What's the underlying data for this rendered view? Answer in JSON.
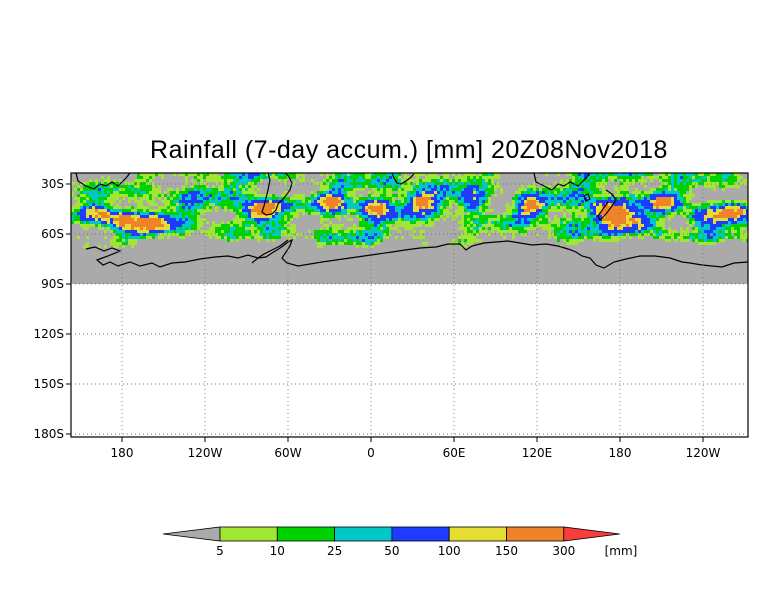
{
  "title": "Rainfall (7-day accum.) [mm] 20Z08Nov2018",
  "map": {
    "projection": "cylindrical",
    "lat_labels": [
      "30S",
      "60S",
      "90S",
      "120S",
      "150S",
      "180S"
    ],
    "lon_labels": [
      "180",
      "120W",
      "60W",
      "0",
      "60E",
      "120E",
      "180",
      "120W"
    ],
    "grid": "dotted",
    "masked_region_color": "#aaaaaa",
    "data_band": "30S-90S (latitudes below 90S blank)"
  },
  "legend": {
    "unit": "[mm]",
    "thresholds": [
      "5",
      "10",
      "25",
      "50",
      "100",
      "150",
      "300"
    ],
    "colors": [
      "#aaaaaa",
      "#a0e632",
      "#00d200",
      "#00c8c8",
      "#1e3cff",
      "#e6dc32",
      "#f08228",
      "#fa3c3c"
    ]
  }
}
